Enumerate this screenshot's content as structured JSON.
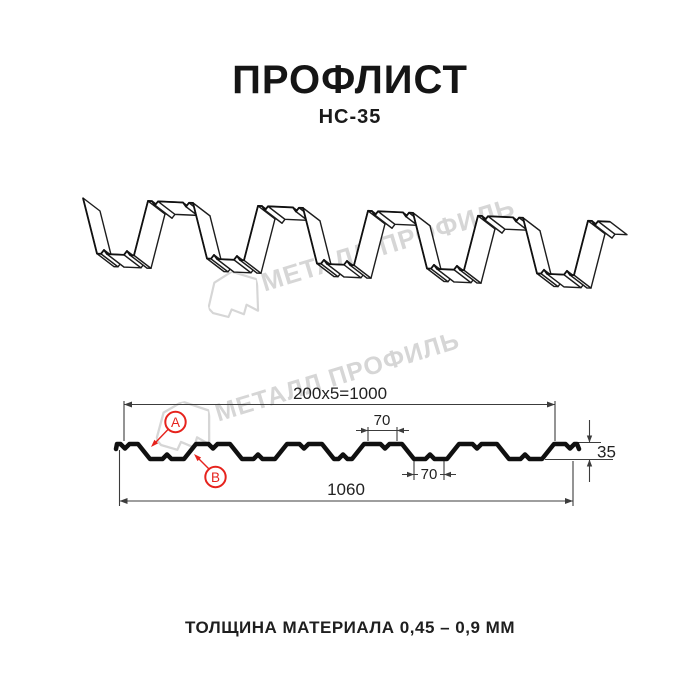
{
  "header": {
    "title": "ПРОФЛИСТ",
    "subtitle": "НС-35"
  },
  "watermark": {
    "brand": "МЕТАЛЛ ПРОФИЛЬ",
    "color": "#d6d6d6"
  },
  "cross_section": {
    "dims": {
      "coverage": "200x5=1000",
      "top_flange": "70",
      "bottom_flange": "70",
      "height": "35",
      "overall": "1060"
    },
    "labels": {
      "a": "A",
      "b": "B"
    },
    "accent_color": "#e6231d"
  },
  "footer": {
    "thickness": "ТОЛЩИНА МАТЕРИАЛА 0,45 – 0,9 ММ"
  }
}
